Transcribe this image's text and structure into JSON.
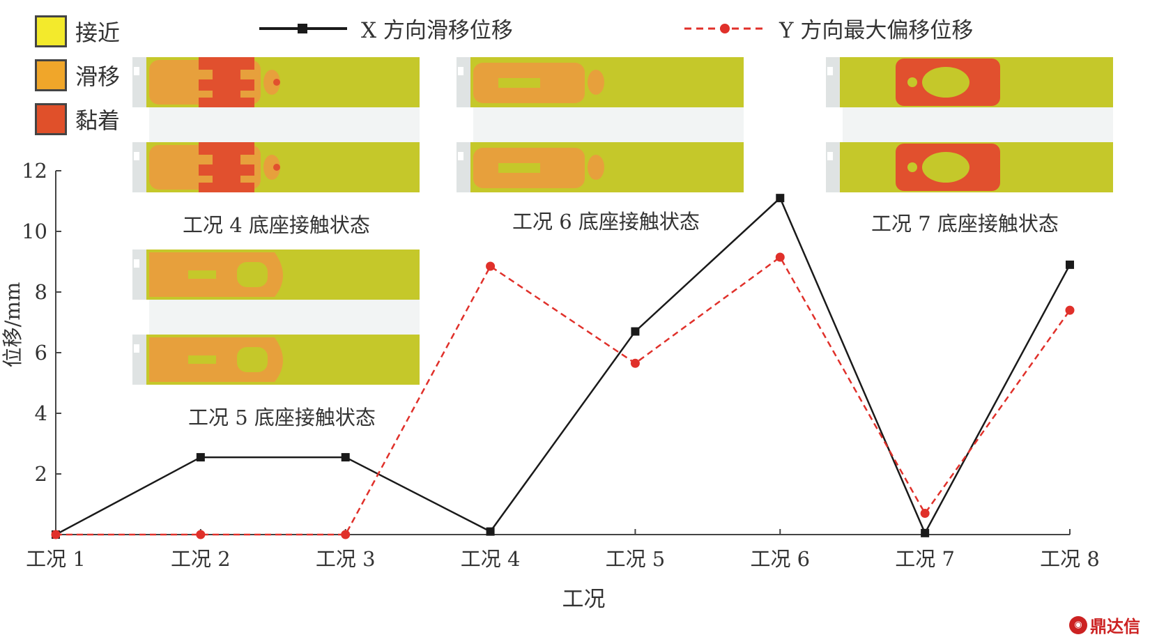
{
  "legend_contact": [
    {
      "label": "接近",
      "color": "#f3ea2c"
    },
    {
      "label": "滑移",
      "color": "#f0a62a"
    },
    {
      "label": "黏着",
      "color": "#e0502a"
    }
  ],
  "contact_map_colors": {
    "base": "#c5c82a",
    "slip": "#e7a03c",
    "stick": "#e1502e",
    "rail": "#dfe3e3"
  },
  "insets": [
    {
      "caption": "工况 4 底座接触状态"
    },
    {
      "caption": "工况 6 底座接触状态"
    },
    {
      "caption": "工况 7 底座接触状态"
    },
    {
      "caption": "工况 5 底座接触状态"
    }
  ],
  "watermark": "鼎达信",
  "chart_data": {
    "type": "line",
    "categories": [
      "工况 1",
      "工况 2",
      "工况 3",
      "工况 4",
      "工况 5",
      "工况 6",
      "工况 7",
      "工况 8"
    ],
    "series": [
      {
        "name": "X 方向滑移位移",
        "color": "#1a1a1a",
        "marker": "square",
        "dash": "solid",
        "values": [
          0,
          2.55,
          2.55,
          0.1,
          6.7,
          11.1,
          0.05,
          8.9
        ]
      },
      {
        "name": "Y 方向最大偏移位移",
        "color": "#e0302a",
        "marker": "circle",
        "dash": "dashed",
        "values": [
          0,
          0,
          0,
          8.85,
          5.65,
          9.15,
          0.7,
          7.4
        ]
      }
    ],
    "xlabel": "工况",
    "ylabel": "位移/mm",
    "ylim": [
      0,
      12
    ],
    "yticks": [
      2,
      4,
      6,
      8,
      10,
      12
    ],
    "grid": false,
    "legend": "top"
  }
}
